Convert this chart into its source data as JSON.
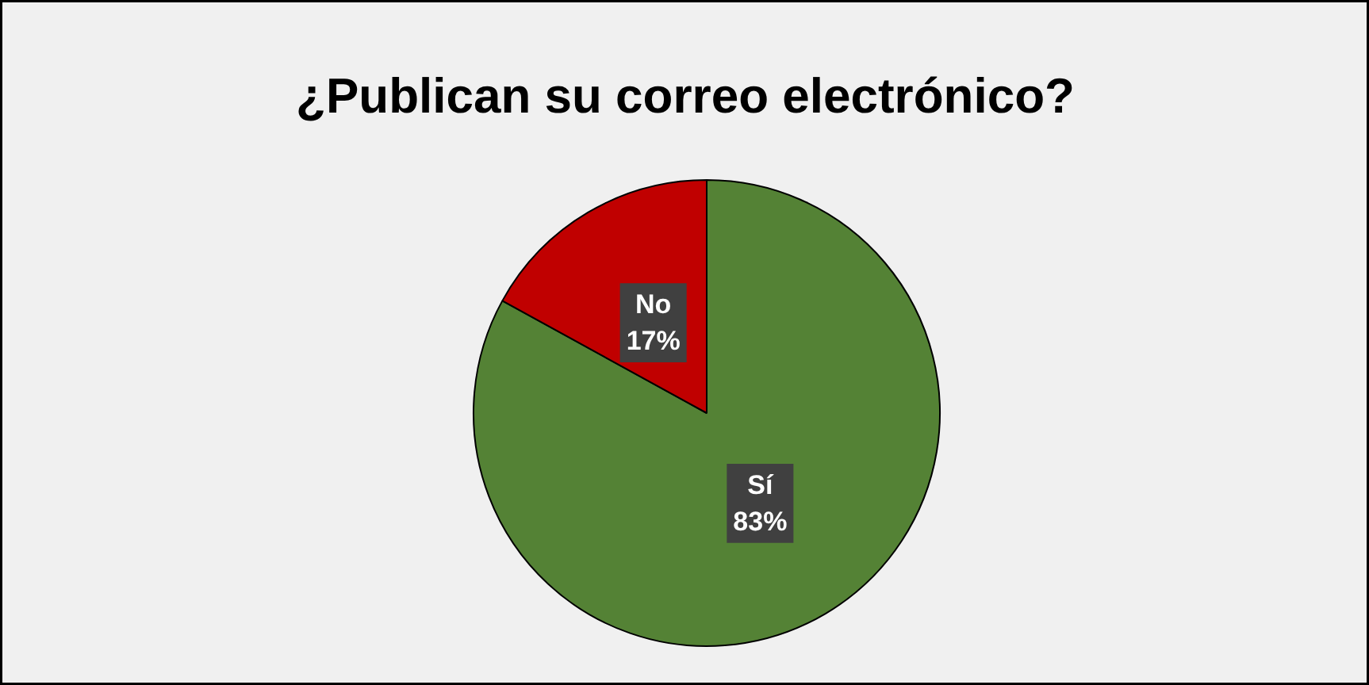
{
  "chart_data": {
    "type": "pie",
    "title": "¿Publican su correo electrónico?",
    "categories": [
      "Sí",
      "No"
    ],
    "values": [
      83,
      17
    ],
    "colors": [
      "#548235",
      "#c00000"
    ],
    "value_labels": [
      "83%",
      "17%"
    ]
  }
}
